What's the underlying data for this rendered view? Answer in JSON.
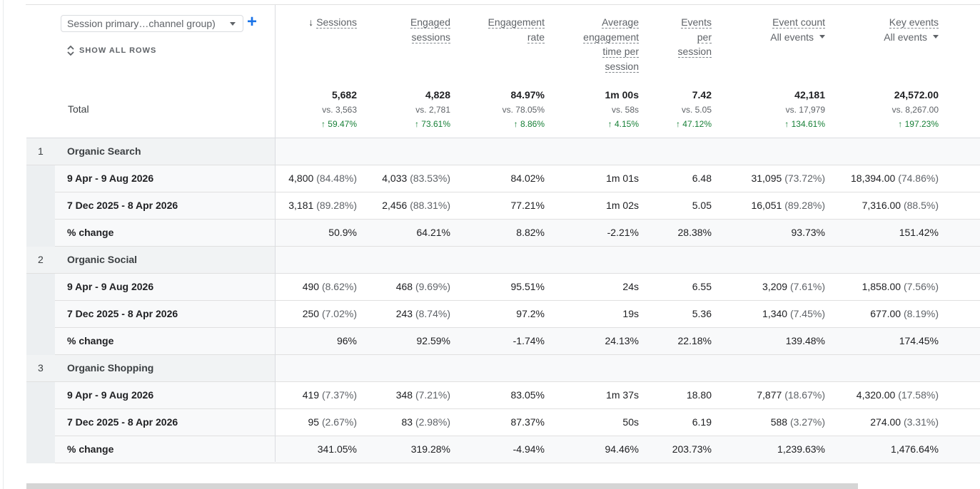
{
  "dimension_select": {
    "label": "Session primary…channel group)"
  },
  "add_dimension": "+",
  "show_all_rows": "SHOW ALL ROWS",
  "total_label": "Total",
  "columns": [
    {
      "key": "sessions",
      "lines": [
        "Sessions"
      ],
      "sorted": true,
      "sort_icon": "↓"
    },
    {
      "key": "engaged",
      "lines": [
        "Engaged",
        "sessions"
      ]
    },
    {
      "key": "engrate",
      "lines": [
        "Engagement",
        "rate"
      ]
    },
    {
      "key": "avgtime",
      "lines": [
        "Average",
        "engagement",
        "time per",
        "session"
      ]
    },
    {
      "key": "events_per",
      "lines": [
        "Events",
        "per",
        "session"
      ]
    },
    {
      "key": "eventcount",
      "lines": [
        "Event count"
      ],
      "sub": "All events"
    },
    {
      "key": "keyevents",
      "lines": [
        "Key events"
      ],
      "sub": "All events"
    }
  ],
  "totals": [
    {
      "value": "5,682",
      "vs": "vs. 3,563",
      "change": "↑ 59.47%"
    },
    {
      "value": "4,828",
      "vs": "vs. 2,781",
      "change": "↑ 73.61%"
    },
    {
      "value": "84.97%",
      "vs": "vs. 78.05%",
      "change": "↑ 8.86%"
    },
    {
      "value": "1m 00s",
      "vs": "vs. 58s",
      "change": "↑ 4.15%"
    },
    {
      "value": "7.42",
      "vs": "vs. 5.05",
      "change": "↑ 47.12%"
    },
    {
      "value": "42,181",
      "vs": "vs. 17,979",
      "change": "↑ 134.61%"
    },
    {
      "value": "24,572.00",
      "vs": "vs. 8,267.00",
      "change": "↑ 197.23%"
    }
  ],
  "groups": [
    {
      "index": "1",
      "name": "Organic Search",
      "rows": [
        {
          "label": "9 Apr - 9 Aug 2026",
          "cells": [
            [
              "4,800",
              "(84.48%)"
            ],
            [
              "4,033",
              "(83.53%)"
            ],
            [
              "84.02%",
              ""
            ],
            [
              "1m 01s",
              ""
            ],
            [
              "6.48",
              ""
            ],
            [
              "31,095",
              "(73.72%)"
            ],
            [
              "18,394.00",
              "(74.86%)"
            ]
          ]
        },
        {
          "label": "7 Dec 2025 - 8 Apr 2026",
          "cells": [
            [
              "3,181",
              "(89.28%)"
            ],
            [
              "2,456",
              "(88.31%)"
            ],
            [
              "77.21%",
              ""
            ],
            [
              "1m 02s",
              ""
            ],
            [
              "5.05",
              ""
            ],
            [
              "16,051",
              "(89.28%)"
            ],
            [
              "7,316.00",
              "(88.5%)"
            ]
          ]
        },
        {
          "label": "% change",
          "cells": [
            [
              "50.9%",
              ""
            ],
            [
              "64.21%",
              ""
            ],
            [
              "8.82%",
              ""
            ],
            [
              "-2.21%",
              ""
            ],
            [
              "28.38%",
              ""
            ],
            [
              "93.73%",
              ""
            ],
            [
              "151.42%",
              ""
            ]
          ]
        }
      ]
    },
    {
      "index": "2",
      "name": "Organic Social",
      "rows": [
        {
          "label": "9 Apr - 9 Aug 2026",
          "cells": [
            [
              "490",
              "(8.62%)"
            ],
            [
              "468",
              "(9.69%)"
            ],
            [
              "95.51%",
              ""
            ],
            [
              "24s",
              ""
            ],
            [
              "6.55",
              ""
            ],
            [
              "3,209",
              "(7.61%)"
            ],
            [
              "1,858.00",
              "(7.56%)"
            ]
          ]
        },
        {
          "label": "7 Dec 2025 - 8 Apr 2026",
          "cells": [
            [
              "250",
              "(7.02%)"
            ],
            [
              "243",
              "(8.74%)"
            ],
            [
              "97.2%",
              ""
            ],
            [
              "19s",
              ""
            ],
            [
              "5.36",
              ""
            ],
            [
              "1,340",
              "(7.45%)"
            ],
            [
              "677.00",
              "(8.19%)"
            ]
          ]
        },
        {
          "label": "% change",
          "cells": [
            [
              "96%",
              ""
            ],
            [
              "92.59%",
              ""
            ],
            [
              "-1.74%",
              ""
            ],
            [
              "24.13%",
              ""
            ],
            [
              "22.18%",
              ""
            ],
            [
              "139.48%",
              ""
            ],
            [
              "174.45%",
              ""
            ]
          ]
        }
      ]
    },
    {
      "index": "3",
      "name": "Organic Shopping",
      "rows": [
        {
          "label": "9 Apr - 9 Aug 2026",
          "cells": [
            [
              "419",
              "(7.37%)"
            ],
            [
              "348",
              "(7.21%)"
            ],
            [
              "83.05%",
              ""
            ],
            [
              "1m 37s",
              ""
            ],
            [
              "18.80",
              ""
            ],
            [
              "7,877",
              "(18.67%)"
            ],
            [
              "4,320.00",
              "(17.58%)"
            ]
          ]
        },
        {
          "label": "7 Dec 2025 - 8 Apr 2026",
          "cells": [
            [
              "95",
              "(2.67%)"
            ],
            [
              "83",
              "(2.98%)"
            ],
            [
              "87.37%",
              ""
            ],
            [
              "50s",
              ""
            ],
            [
              "6.19",
              ""
            ],
            [
              "588",
              "(3.27%)"
            ],
            [
              "274.00",
              "(3.31%)"
            ]
          ]
        },
        {
          "label": "% change",
          "cells": [
            [
              "341.05%",
              ""
            ],
            [
              "319.28%",
              ""
            ],
            [
              "-4.94%",
              ""
            ],
            [
              "94.46%",
              ""
            ],
            [
              "203.73%",
              ""
            ],
            [
              "1,239.63%",
              ""
            ],
            [
              "1,476.64%",
              ""
            ]
          ]
        }
      ]
    }
  ],
  "colors": {
    "accent": "#1a73e8",
    "positive": "#188038"
  }
}
